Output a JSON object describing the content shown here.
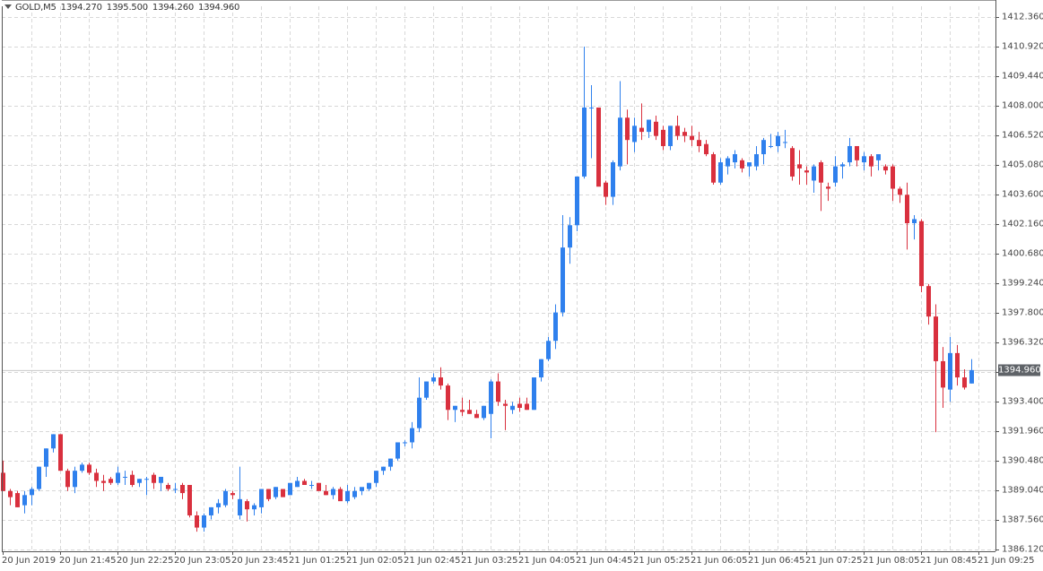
{
  "header": {
    "symbol": "GOLD,M5",
    "open": "1394.270",
    "high": "1395.500",
    "low": "1394.260",
    "close": "1394.960"
  },
  "current_price": "1394.960",
  "colors": {
    "bull": "#2f80ed",
    "bear": "#d9303e",
    "grid": "#d8d8d8",
    "axis": "#555555",
    "price_tag_bg": "#5f6368"
  },
  "chart_data": {
    "type": "candlestick",
    "title": "GOLD,M5",
    "xlabel": "",
    "ylabel": "",
    "ylim": [
      1386.12,
      1412.36
    ],
    "grid": true,
    "y_ticks": [
      "1412.360",
      "1410.920",
      "1409.440",
      "1408.000",
      "1406.520",
      "1405.080",
      "1403.600",
      "1402.160",
      "1400.680",
      "1399.240",
      "1397.800",
      "1396.320",
      "1393.400",
      "1391.960",
      "1390.480",
      "1389.040",
      "1387.560",
      "1386.120"
    ],
    "x_ticks": [
      "20 Jun 2019",
      "20 Jun 21:45",
      "20 Jun 22:25",
      "20 Jun 23:05",
      "20 Jun 23:45",
      "21 Jun 01:25",
      "21 Jun 02:05",
      "21 Jun 02:45",
      "21 Jun 03:25",
      "21 Jun 04:05",
      "21 Jun 04:45",
      "21 Jun 05:25",
      "21 Jun 06:05",
      "21 Jun 06:45",
      "21 Jun 07:25",
      "21 Jun 08:05",
      "21 Jun 08:45",
      "21 Jun 09:25"
    ],
    "candle_fields": [
      "open",
      "high",
      "low",
      "close"
    ],
    "candles": [
      [
        1389.9,
        1390.5,
        1389.0,
        1389.0
      ],
      [
        1389.0,
        1389.1,
        1388.3,
        1388.7
      ],
      [
        1388.9,
        1389.0,
        1388.2,
        1388.2
      ],
      [
        1388.3,
        1389.0,
        1387.9,
        1388.8
      ],
      [
        1388.8,
        1389.2,
        1388.3,
        1389.1
      ],
      [
        1389.1,
        1390.2,
        1389.0,
        1390.2
      ],
      [
        1390.2,
        1391.1,
        1389.7,
        1391.1
      ],
      [
        1391.1,
        1391.8,
        1390.9,
        1391.8
      ],
      [
        1391.8,
        1391.8,
        1390.0,
        1390.0
      ],
      [
        1390.0,
        1390.1,
        1389.0,
        1389.2
      ],
      [
        1389.2,
        1390.2,
        1388.9,
        1390.0
      ],
      [
        1390.0,
        1390.4,
        1389.9,
        1390.3
      ],
      [
        1390.3,
        1390.4,
        1389.8,
        1389.9
      ],
      [
        1389.9,
        1390.1,
        1389.2,
        1389.5
      ],
      [
        1389.5,
        1389.8,
        1389.0,
        1389.4
      ],
      [
        1389.6,
        1389.7,
        1389.3,
        1389.4
      ],
      [
        1389.4,
        1390.2,
        1389.3,
        1389.9
      ],
      [
        1389.7,
        1390.0,
        1389.3,
        1389.7
      ],
      [
        1389.8,
        1390.0,
        1389.2,
        1389.3
      ],
      [
        1389.4,
        1389.6,
        1389.2,
        1389.6
      ],
      [
        1389.6,
        1389.7,
        1388.8,
        1389.6
      ],
      [
        1389.8,
        1389.9,
        1389.1,
        1389.4
      ],
      [
        1389.4,
        1389.7,
        1389.0,
        1389.7
      ],
      [
        1389.3,
        1389.4,
        1389.0,
        1389.1
      ],
      [
        1389.1,
        1389.4,
        1388.9,
        1389.1
      ],
      [
        1389.3,
        1389.4,
        1388.6,
        1388.9
      ],
      [
        1389.3,
        1389.3,
        1387.7,
        1387.8
      ],
      [
        1387.8,
        1388.0,
        1387.0,
        1387.2
      ],
      [
        1387.2,
        1387.9,
        1387.0,
        1387.8
      ],
      [
        1387.8,
        1388.2,
        1387.6,
        1388.2
      ],
      [
        1388.2,
        1388.6,
        1387.9,
        1388.4
      ],
      [
        1388.3,
        1389.1,
        1388.2,
        1389.0
      ],
      [
        1388.9,
        1389.0,
        1388.6,
        1388.8
      ],
      [
        1387.8,
        1390.2,
        1387.6,
        1388.6
      ],
      [
        1388.5,
        1388.6,
        1387.5,
        1388.1
      ],
      [
        1388.1,
        1388.4,
        1387.8,
        1388.3
      ],
      [
        1388.2,
        1389.1,
        1387.9,
        1389.1
      ],
      [
        1389.1,
        1389.1,
        1388.5,
        1388.6
      ],
      [
        1388.7,
        1389.2,
        1388.6,
        1389.2
      ],
      [
        1389.1,
        1389.1,
        1388.7,
        1388.7
      ],
      [
        1388.8,
        1389.4,
        1388.8,
        1389.4
      ],
      [
        1389.2,
        1389.7,
        1389.2,
        1389.5
      ],
      [
        1389.5,
        1389.6,
        1389.3,
        1389.3
      ],
      [
        1389.3,
        1389.5,
        1389.1,
        1389.3
      ],
      [
        1389.4,
        1389.4,
        1389.0,
        1389.0
      ],
      [
        1389.0,
        1389.3,
        1388.8,
        1388.8
      ],
      [
        1388.8,
        1389.2,
        1388.6,
        1389.1
      ],
      [
        1389.1,
        1389.2,
        1388.6,
        1388.5
      ],
      [
        1388.5,
        1389.3,
        1388.4,
        1389.0
      ],
      [
        1388.7,
        1389.2,
        1388.6,
        1389.0
      ],
      [
        1389.0,
        1389.1,
        1388.8,
        1389.2
      ],
      [
        1389.1,
        1389.4,
        1389.0,
        1389.4
      ],
      [
        1389.4,
        1390.0,
        1389.2,
        1390.0
      ],
      [
        1390.0,
        1390.2,
        1389.8,
        1390.2
      ],
      [
        1390.2,
        1390.6,
        1390.0,
        1390.6
      ],
      [
        1390.6,
        1391.4,
        1390.5,
        1391.4
      ],
      [
        1391.4,
        1391.5,
        1391.2,
        1391.4
      ],
      [
        1391.4,
        1392.4,
        1391.1,
        1392.1
      ],
      [
        1392.1,
        1394.6,
        1391.9,
        1393.6
      ],
      [
        1393.6,
        1394.4,
        1393.5,
        1394.4
      ],
      [
        1394.4,
        1394.8,
        1394.3,
        1394.6
      ],
      [
        1394.6,
        1395.1,
        1394.0,
        1394.2
      ],
      [
        1394.2,
        1394.3,
        1392.5,
        1393.0
      ],
      [
        1393.0,
        1393.2,
        1392.4,
        1393.2
      ],
      [
        1393.0,
        1393.6,
        1392.7,
        1392.9
      ],
      [
        1393.0,
        1393.5,
        1392.8,
        1392.8
      ],
      [
        1392.8,
        1393.0,
        1392.6,
        1392.6
      ],
      [
        1392.6,
        1393.2,
        1392.5,
        1393.2
      ],
      [
        1392.8,
        1394.5,
        1391.6,
        1394.4
      ],
      [
        1394.4,
        1394.8,
        1393.2,
        1393.4
      ],
      [
        1393.3,
        1393.5,
        1392.0,
        1393.2
      ],
      [
        1393.0,
        1393.4,
        1392.8,
        1393.2
      ],
      [
        1393.3,
        1393.6,
        1392.9,
        1393.1
      ],
      [
        1393.3,
        1393.6,
        1393.0,
        1393.0
      ],
      [
        1393.0,
        1394.5,
        1393.0,
        1394.6
      ],
      [
        1394.6,
        1395.5,
        1394.4,
        1395.5
      ],
      [
        1395.5,
        1396.6,
        1395.4,
        1396.4
      ],
      [
        1396.4,
        1398.2,
        1396.0,
        1397.8
      ],
      [
        1397.8,
        1402.6,
        1397.6,
        1401.0
      ],
      [
        1401.0,
        1402.5,
        1400.2,
        1402.1
      ],
      [
        1402.1,
        1404.5,
        1401.8,
        1404.5
      ],
      [
        1404.5,
        1410.9,
        1404.4,
        1407.9
      ],
      [
        1407.9,
        1409.0,
        1405.4,
        1407.9
      ],
      [
        1407.9,
        1407.9,
        1404.2,
        1404.0
      ],
      [
        1404.2,
        1404.3,
        1403.1,
        1403.5
      ],
      [
        1403.5,
        1405.3,
        1403.1,
        1405.2
      ],
      [
        1405.0,
        1409.2,
        1404.8,
        1407.4
      ],
      [
        1407.4,
        1407.8,
        1405.1,
        1406.3
      ],
      [
        1406.2,
        1407.4,
        1405.7,
        1407.0
      ],
      [
        1406.9,
        1408.1,
        1406.3,
        1406.7
      ],
      [
        1406.7,
        1407.3,
        1406.4,
        1407.3
      ],
      [
        1407.2,
        1407.5,
        1406.3,
        1406.5
      ],
      [
        1406.8,
        1407.0,
        1405.8,
        1406.0
      ],
      [
        1406.0,
        1407.0,
        1405.8,
        1407.0
      ],
      [
        1407.0,
        1407.5,
        1406.3,
        1406.5
      ],
      [
        1406.7,
        1406.9,
        1406.2,
        1406.5
      ],
      [
        1406.5,
        1407.0,
        1406.0,
        1406.3
      ],
      [
        1406.3,
        1406.7,
        1405.7,
        1406.0
      ],
      [
        1406.1,
        1406.3,
        1405.5,
        1405.6
      ],
      [
        1405.6,
        1405.7,
        1404.1,
        1404.2
      ],
      [
        1404.2,
        1405.4,
        1404.1,
        1405.2
      ],
      [
        1405.0,
        1405.5,
        1404.6,
        1405.4
      ],
      [
        1405.2,
        1405.8,
        1404.9,
        1405.6
      ],
      [
        1405.3,
        1405.4,
        1404.7,
        1404.9
      ],
      [
        1405.0,
        1405.2,
        1404.5,
        1405.2
      ],
      [
        1405.0,
        1406.0,
        1404.8,
        1405.6
      ],
      [
        1405.6,
        1406.4,
        1405.1,
        1406.3
      ],
      [
        1406.0,
        1406.6,
        1405.9,
        1406.0
      ],
      [
        1406.0,
        1406.7,
        1405.7,
        1406.5
      ],
      [
        1406.2,
        1406.8,
        1405.9,
        1406.2
      ],
      [
        1405.9,
        1406.0,
        1404.3,
        1404.5
      ],
      [
        1405.1,
        1405.8,
        1404.1,
        1404.9
      ],
      [
        1404.8,
        1405.0,
        1404.1,
        1404.7
      ],
      [
        1404.3,
        1405.1,
        1403.7,
        1405.0
      ],
      [
        1405.2,
        1405.3,
        1402.8,
        1404.2
      ],
      [
        1404.0,
        1404.2,
        1403.3,
        1403.9
      ],
      [
        1404.2,
        1405.5,
        1404.0,
        1405.0
      ],
      [
        1405.0,
        1405.2,
        1404.4,
        1405.1
      ],
      [
        1405.2,
        1406.4,
        1405.0,
        1406.0
      ],
      [
        1406.0,
        1406.0,
        1405.0,
        1405.3
      ],
      [
        1405.2,
        1405.7,
        1404.8,
        1405.5
      ],
      [
        1405.5,
        1405.6,
        1404.5,
        1405.0
      ],
      [
        1405.3,
        1405.6,
        1404.8,
        1405.6
      ],
      [
        1405.0,
        1405.1,
        1404.6,
        1404.8
      ],
      [
        1405.0,
        1405.1,
        1403.3,
        1403.9
      ],
      [
        1403.9,
        1404.0,
        1403.2,
        1403.6
      ],
      [
        1403.6,
        1404.2,
        1400.9,
        1402.2
      ],
      [
        1402.2,
        1402.6,
        1401.4,
        1402.4
      ],
      [
        1402.3,
        1402.4,
        1398.8,
        1399.1
      ],
      [
        1399.1,
        1399.2,
        1397.2,
        1397.6
      ],
      [
        1397.6,
        1398.2,
        1391.9,
        1395.4
      ],
      [
        1395.4,
        1396.1,
        1393.1,
        1394.1
      ],
      [
        1394.0,
        1396.6,
        1393.4,
        1395.8
      ],
      [
        1395.8,
        1396.2,
        1394.2,
        1394.6
      ],
      [
        1394.6,
        1395.0,
        1394.0,
        1394.1
      ],
      [
        1394.3,
        1395.5,
        1394.3,
        1394.96
      ]
    ]
  }
}
